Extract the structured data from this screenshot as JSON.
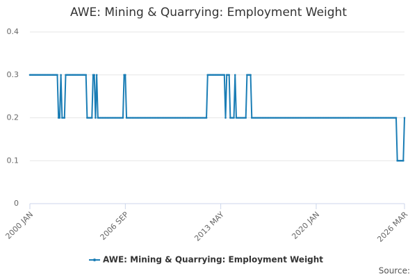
{
  "chart_data": {
    "type": "line",
    "title": "AWE: Mining & Quarrying: Employment Weight",
    "source": "Source:",
    "categories": [
      "2000 JAN",
      null,
      null,
      null,
      null,
      null,
      null,
      null,
      null,
      null,
      null,
      null,
      null,
      null,
      null,
      null,
      null,
      null,
      null,
      null,
      null,
      null,
      null,
      null,
      null,
      null,
      null,
      null,
      null,
      null,
      null,
      null,
      null,
      null,
      null,
      null,
      null,
      null,
      null,
      null,
      null,
      null,
      null,
      null,
      null,
      null,
      null,
      null,
      null,
      null,
      null,
      null,
      null,
      null,
      null,
      null,
      null,
      null,
      null,
      null,
      null,
      null,
      null,
      null,
      null,
      null,
      null,
      null,
      null,
      null,
      null,
      null,
      null,
      null,
      null,
      null,
      null,
      null,
      null,
      null,
      "2006 SEP",
      null,
      null,
      null,
      null,
      null,
      null,
      null,
      null,
      null,
      null,
      null,
      null,
      null,
      null,
      null,
      null,
      null,
      null,
      null,
      null,
      null,
      null,
      null,
      null,
      null,
      null,
      null,
      null,
      null,
      null,
      null,
      null,
      null,
      null,
      null,
      null,
      null,
      null,
      null,
      null,
      null,
      null,
      null,
      null,
      null,
      null,
      null,
      null,
      null,
      null,
      null,
      null,
      null,
      null,
      null,
      null,
      null,
      null,
      null,
      null,
      null,
      null,
      null,
      null,
      null,
      null,
      null,
      null,
      null,
      null,
      null,
      null,
      null,
      null,
      null,
      null,
      null,
      null,
      null,
      "2013 MAY",
      null,
      null,
      null,
      null,
      null,
      null,
      null,
      null,
      null,
      null,
      null,
      null,
      null,
      null,
      null,
      null,
      null,
      null,
      null,
      null,
      null,
      null,
      null,
      null,
      null,
      null,
      null,
      null,
      null,
      null,
      null,
      null,
      null,
      null,
      null,
      null,
      null,
      null,
      null,
      null,
      null,
      null,
      null,
      null,
      null,
      null,
      null,
      null,
      null,
      null,
      null,
      null,
      null,
      null,
      null,
      null,
      null,
      null,
      null,
      null,
      null,
      null,
      null,
      null,
      null,
      null,
      null,
      null,
      null,
      null,
      null,
      null,
      null,
      null,
      null,
      null,
      null,
      null,
      null,
      "2020 JAN",
      null,
      null,
      null,
      null,
      null,
      null,
      null,
      null,
      null,
      null,
      null,
      null,
      null,
      null,
      null,
      null,
      null,
      null,
      null,
      null,
      null,
      null,
      null,
      null,
      null,
      null,
      null,
      null,
      null,
      null,
      null,
      null,
      null,
      null,
      null,
      null,
      null,
      null,
      null,
      null,
      null,
      null,
      null,
      null,
      null,
      null,
      null,
      null,
      null,
      null,
      null,
      null,
      null,
      null,
      null,
      null,
      null,
      null,
      null,
      null,
      null,
      null,
      null,
      null,
      null,
      null,
      null,
      null,
      null,
      null,
      null,
      null,
      null,
      "2026 MAR"
    ],
    "series": [
      {
        "name": "AWE: Mining & Quarrying: Employment Weight",
        "color": "#1a7db5",
        "values": [
          0.3,
          0.3,
          0.3,
          0.3,
          0.3,
          0.3,
          0.3,
          0.3,
          0.3,
          0.3,
          0.3,
          0.3,
          0.3,
          0.3,
          0.3,
          0.3,
          0.3,
          0.3,
          0.3,
          0.3,
          0.3,
          0.3,
          0.3,
          0.3,
          0.2,
          0.2,
          0.3,
          0.2,
          0.2,
          0.2,
          0.3,
          0.3,
          0.3,
          0.3,
          0.3,
          0.3,
          0.3,
          0.3,
          0.3,
          0.3,
          0.3,
          0.3,
          0.3,
          0.3,
          0.3,
          0.3,
          0.3,
          0.3,
          0.2,
          0.2,
          0.2,
          0.2,
          0.2,
          0.3,
          0.3,
          0.2,
          0.3,
          0.2,
          0.2,
          0.2,
          0.2,
          0.2,
          0.2,
          0.2,
          0.2,
          0.2,
          0.2,
          0.2,
          0.2,
          0.2,
          0.2,
          0.2,
          0.2,
          0.2,
          0.2,
          0.2,
          0.2,
          0.2,
          0.2,
          0.3,
          0.3,
          0.2,
          0.2,
          0.2,
          0.2,
          0.2,
          0.2,
          0.2,
          0.2,
          0.2,
          0.2,
          0.2,
          0.2,
          0.2,
          0.2,
          0.2,
          0.2,
          0.2,
          0.2,
          0.2,
          0.2,
          0.2,
          0.2,
          0.2,
          0.2,
          0.2,
          0.2,
          0.2,
          0.2,
          0.2,
          0.2,
          0.2,
          0.2,
          0.2,
          0.2,
          0.2,
          0.2,
          0.2,
          0.2,
          0.2,
          0.2,
          0.2,
          0.2,
          0.2,
          0.2,
          0.2,
          0.2,
          0.2,
          0.2,
          0.2,
          0.2,
          0.2,
          0.2,
          0.2,
          0.2,
          0.2,
          0.2,
          0.2,
          0.2,
          0.2,
          0.2,
          0.2,
          0.2,
          0.2,
          0.2,
          0.2,
          0.2,
          0.2,
          0.2,
          0.3,
          0.3,
          0.3,
          0.3,
          0.3,
          0.3,
          0.3,
          0.3,
          0.3,
          0.3,
          0.3,
          0.3,
          0.3,
          0.3,
          0.3,
          0.2,
          0.3,
          0.3,
          0.3,
          0.2,
          0.2,
          0.2,
          0.2,
          0.3,
          0.2,
          0.2,
          0.2,
          0.2,
          0.2,
          0.2,
          0.2,
          0.2,
          0.2,
          0.3,
          0.3,
          0.3,
          0.3,
          0.2,
          0.2,
          0.2,
          0.2,
          0.2,
          0.2,
          0.2,
          0.2,
          0.2,
          0.2,
          0.2,
          0.2,
          0.2,
          0.2,
          0.2,
          0.2,
          0.2,
          0.2,
          0.2,
          0.2,
          0.2,
          0.2,
          0.2,
          0.2,
          0.2,
          0.2,
          0.2,
          0.2,
          0.2,
          0.2,
          0.2,
          0.2,
          0.2,
          0.2,
          0.2,
          0.2,
          0.2,
          0.2,
          0.2,
          0.2,
          0.2,
          0.2,
          0.2,
          0.2,
          0.2,
          0.2,
          0.2,
          0.2,
          0.2,
          0.2,
          0.2,
          0.2,
          0.2,
          0.2,
          0.2,
          0.2,
          0.2,
          0.2,
          0.2,
          0.2,
          0.2,
          0.2,
          0.2,
          0.2,
          0.2,
          0.2,
          0.2,
          0.2,
          0.2,
          0.2,
          0.2,
          0.2,
          0.2,
          0.2,
          0.2,
          0.2,
          0.2,
          0.2,
          0.2,
          0.2,
          0.2,
          0.2,
          0.2,
          0.2,
          0.2,
          0.2,
          0.2,
          0.2,
          0.2,
          0.2,
          0.2,
          0.2,
          0.2,
          0.2,
          0.2,
          0.2,
          0.2,
          0.2,
          0.2,
          0.2,
          0.2,
          0.2,
          0.2,
          0.2,
          0.2,
          0.2,
          0.2,
          0.2,
          0.2,
          0.2,
          0.2,
          0.2,
          0.2,
          0.2,
          0.2,
          0.2,
          0.2,
          0.2,
          0.2,
          0.2,
          0.2,
          0.2,
          0.1,
          0.1,
          0.1,
          0.1,
          0.1,
          0.1,
          0.2
        ]
      }
    ],
    "ylim": [
      0,
      0.4
    ],
    "yticks": [
      0,
      0.1,
      0.2,
      0.3,
      0.4
    ],
    "grid": true,
    "legend": "bottom"
  }
}
